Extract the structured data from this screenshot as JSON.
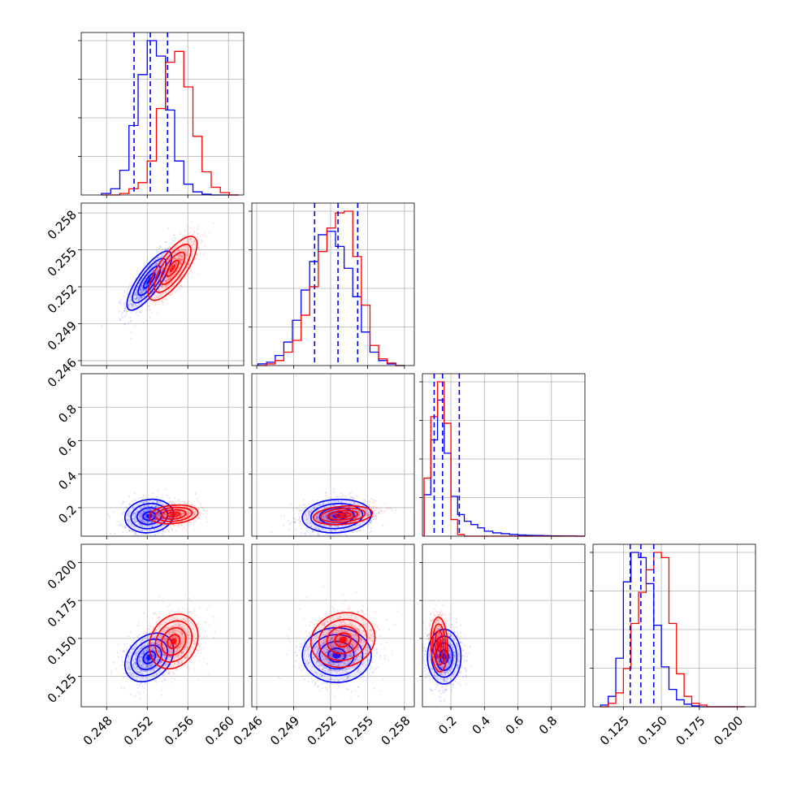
{
  "chart_data": {
    "type": "corner",
    "series": [
      {
        "color": "#0000ff"
      },
      {
        "color": "#ff0000"
      }
    ],
    "grid": true,
    "parameters": [
      {
        "range": [
          0.2455,
          0.2615
        ],
        "ticks": [
          0.248,
          0.252,
          0.256,
          0.26
        ],
        "tick_labels": [
          "0.248",
          "0.252",
          "0.256",
          "0.260"
        ],
        "hist_edges": [
          0.2475,
          0.2484,
          0.2493,
          0.2502,
          0.2511,
          0.252,
          0.2529,
          0.2538,
          0.2547,
          0.2556,
          0.2565,
          0.2574,
          0.2583,
          0.2592,
          0.2601,
          0.261
        ],
        "hist": [
          [
            0.01,
            0.04,
            0.16,
            0.45,
            0.78,
            1.0,
            0.9,
            0.55,
            0.22,
            0.07,
            0.02,
            0.005,
            0.0,
            0.0,
            0.0
          ],
          [
            0.0,
            0.0,
            0.01,
            0.04,
            0.08,
            0.22,
            0.56,
            0.86,
            0.93,
            0.7,
            0.38,
            0.15,
            0.05,
            0.015,
            0.0
          ]
        ],
        "quantiles": [
          0.2507,
          0.2523,
          0.254
        ]
      },
      {
        "range": [
          0.2456,
          0.2588
        ],
        "ticks": [
          0.246,
          0.249,
          0.252,
          0.255,
          0.258
        ],
        "tick_labels": [
          "0.246",
          "0.249",
          "0.252",
          "0.255",
          "0.258"
        ],
        "hist_edges": [
          0.2461,
          0.2468,
          0.2475,
          0.2482,
          0.2489,
          0.2496,
          0.2503,
          0.251,
          0.2517,
          0.2524,
          0.2531,
          0.2538,
          0.2545,
          0.2552,
          0.2559,
          0.2566,
          0.2573,
          0.258
        ],
        "hist": [
          [
            0.01,
            0.02,
            0.06,
            0.14,
            0.27,
            0.45,
            0.62,
            0.78,
            0.8,
            0.71,
            0.58,
            0.41,
            0.2,
            0.08,
            0.03,
            0.01,
            0.0
          ],
          [
            0.0,
            0.01,
            0.03,
            0.08,
            0.15,
            0.3,
            0.47,
            0.68,
            0.82,
            0.91,
            0.92,
            0.65,
            0.36,
            0.12,
            0.04,
            0.015,
            0.0
          ]
        ],
        "quantiles": [
          0.2507,
          0.2526,
          0.2542
        ]
      },
      {
        "range": [
          0.03,
          1.0
        ],
        "ticks": [
          0.2,
          0.4,
          0.6,
          0.8
        ],
        "tick_labels": [
          "0.2",
          "0.4",
          "0.6",
          "0.8"
        ],
        "hist_edges": [
          0.04,
          0.08,
          0.12,
          0.16,
          0.2,
          0.24,
          0.28,
          0.32,
          0.36,
          0.4,
          0.45,
          0.5,
          0.55,
          0.6,
          0.65,
          0.7,
          0.75,
          0.8,
          0.85,
          0.9,
          0.95,
          1.0
        ],
        "hist": [
          [
            0.25,
            0.58,
            0.82,
            0.5,
            0.24,
            0.13,
            0.09,
            0.07,
            0.05,
            0.03,
            0.02,
            0.015,
            0.01,
            0.007,
            0.005,
            0.004,
            0.003,
            0.002,
            0.001,
            0.001,
            0.0
          ],
          [
            0.35,
            0.72,
            0.93,
            0.68,
            0.1,
            0.01,
            0.0,
            0.0,
            0.0,
            0.0,
            0.0,
            0.0,
            0.0,
            0.0,
            0.0,
            0.0,
            0.0,
            0.0,
            0.0,
            0.0,
            0.0
          ]
        ],
        "quantiles": [
          0.1,
          0.15,
          0.25
        ]
      },
      {
        "range": [
          0.105,
          0.212
        ],
        "ticks": [
          0.125,
          0.15,
          0.175,
          0.2
        ],
        "tick_labels": [
          "0.125",
          "0.150",
          "0.175",
          "0.200"
        ],
        "hist_edges": [
          0.11,
          0.115,
          0.12,
          0.125,
          0.13,
          0.135,
          0.14,
          0.145,
          0.15,
          0.155,
          0.16,
          0.165,
          0.17,
          0.175,
          0.18,
          0.185,
          0.19,
          0.195,
          0.2,
          0.205
        ],
        "hist": [
          [
            0.01,
            0.06,
            0.28,
            0.72,
            0.89,
            0.86,
            0.71,
            0.47,
            0.23,
            0.1,
            0.04,
            0.015,
            0.005,
            0.0,
            0.0,
            0.0,
            0.0,
            0.0,
            0.0
          ],
          [
            0.0,
            0.02,
            0.08,
            0.22,
            0.48,
            0.66,
            0.79,
            0.89,
            0.86,
            0.48,
            0.19,
            0.06,
            0.02,
            0.01,
            0.0,
            0.0,
            0.0,
            0.0,
            0.0
          ]
        ],
        "quantiles": [
          0.1295,
          0.1365,
          0.145
        ]
      }
    ],
    "joint": [
      {
        "row": 1,
        "col": 0,
        "modes": [
          {
            "series": 0,
            "center": [
              0.2522,
              0.2525
            ],
            "sigma": [
              0.0011,
              0.0012
            ],
            "rho": 0.8
          },
          {
            "series": 1,
            "center": [
              0.2545,
              0.2535
            ],
            "sigma": [
              0.0012,
              0.0013
            ],
            "rho": 0.75
          }
        ]
      },
      {
        "row": 2,
        "col": 0,
        "modes": [
          {
            "series": 0,
            "center": [
              0.2522,
              0.15
            ],
            "sigma": [
              0.0012,
              0.05
            ],
            "rho": 0.1
          },
          {
            "series": 1,
            "center": [
              0.2546,
              0.16
            ],
            "sigma": [
              0.0012,
              0.028
            ],
            "rho": 0.2
          }
        ]
      },
      {
        "row": 2,
        "col": 1,
        "modes": [
          {
            "series": 0,
            "center": [
              0.2525,
              0.15
            ],
            "sigma": [
              0.0014,
              0.05
            ],
            "rho": 0.1
          },
          {
            "series": 1,
            "center": [
              0.253,
              0.155
            ],
            "sigma": [
              0.0012,
              0.028
            ],
            "rho": 0.25
          }
        ]
      },
      {
        "row": 3,
        "col": 0,
        "modes": [
          {
            "series": 0,
            "center": [
              0.2522,
              0.1375
            ],
            "sigma": [
              0.0012,
              0.008
            ],
            "rho": 0.3
          },
          {
            "series": 1,
            "center": [
              0.2546,
              0.148
            ],
            "sigma": [
              0.0012,
              0.009
            ],
            "rho": 0.2
          }
        ]
      },
      {
        "row": 3,
        "col": 1,
        "modes": [
          {
            "series": 0,
            "center": [
              0.2525,
              0.139
            ],
            "sigma": [
              0.0014,
              0.009
            ],
            "rho": 0.0
          },
          {
            "series": 1,
            "center": [
              0.253,
              0.149
            ],
            "sigma": [
              0.0013,
              0.009
            ],
            "rho": 0.1
          }
        ]
      },
      {
        "row": 3,
        "col": 2,
        "modes": [
          {
            "series": 0,
            "center": [
              0.16,
              0.138
            ],
            "sigma": [
              0.05,
              0.009
            ],
            "rho": 0.0
          },
          {
            "series": 1,
            "center": [
              0.13,
              0.146
            ],
            "sigma": [
              0.025,
              0.009
            ],
            "rho": -0.1
          }
        ]
      }
    ]
  }
}
